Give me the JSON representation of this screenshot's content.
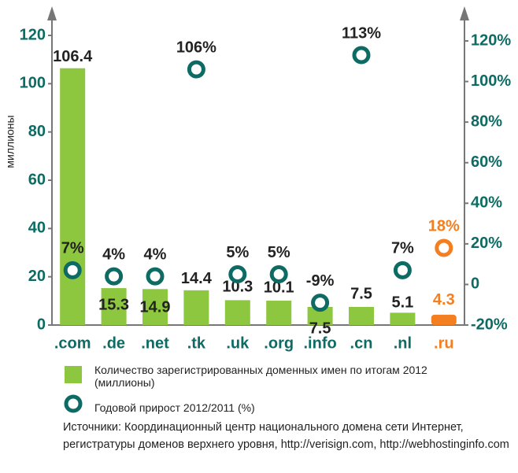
{
  "chart_data": {
    "type": "bar",
    "y_label": "миллионы",
    "categories": [
      ".com",
      ".de",
      ".net",
      ".tk",
      ".uk",
      ".org",
      ".info",
      ".cn",
      ".nl",
      ".ru"
    ],
    "category_colors": [
      "#0d6b64",
      "#0d6b64",
      "#0d6b64",
      "#0d6b64",
      "#0d6b64",
      "#0d6b64",
      "#0d6b64",
      "#0d6b64",
      "#0d6b64",
      "#f47f20"
    ],
    "ylim": [
      0,
      120
    ],
    "yticks": [
      0,
      20,
      40,
      60,
      80,
      100,
      120
    ],
    "y2lim": [
      -20,
      120
    ],
    "y2ticks": [
      {
        "value": -20,
        "label": "-20%"
      },
      {
        "value": 0,
        "label": "0"
      },
      {
        "value": 20,
        "label": "20%"
      },
      {
        "value": 40,
        "label": "40%"
      },
      {
        "value": 60,
        "label": "60%"
      },
      {
        "value": 80,
        "label": "80%"
      },
      {
        "value": 100,
        "label": "100%"
      },
      {
        "value": 120,
        "label": "120%"
      }
    ],
    "series": [
      {
        "name": "Количество зарегистрированных доменных имен по итогам 2012 (миллионы)",
        "type": "bar",
        "color": "#8dc63f",
        "colors": [
          "#8dc63f",
          "#8dc63f",
          "#8dc63f",
          "#8dc63f",
          "#8dc63f",
          "#8dc63f",
          "#8dc63f",
          "#8dc63f",
          "#8dc63f",
          "#f47f20"
        ],
        "values": [
          106.4,
          15.3,
          14.9,
          14.4,
          10.3,
          10.1,
          7.5,
          7.5,
          5.1,
          4.3
        ]
      },
      {
        "name": "Годовой прирост 2012/2011 (%)",
        "type": "scatter",
        "axis": "y2",
        "color": "#0d6b64",
        "colors": [
          "#0d6b64",
          "#0d6b64",
          "#0d6b64",
          "#0d6b64",
          "#0d6b64",
          "#0d6b64",
          "#0d6b64",
          "#0d6b64",
          "#0d6b64",
          "#f47f20"
        ],
        "values": [
          7,
          4,
          4,
          106,
          5,
          5,
          -9,
          113,
          7,
          18
        ],
        "value_labels": [
          "7%",
          "4%",
          "4%",
          "106%",
          "5%",
          "5%",
          "-9%",
          "113%",
          "7%",
          "18%"
        ]
      }
    ],
    "source": "Источники: Координационный центр национального домена сети Интернет, регистратуры доменов верхнего уровня, http://verisign.com, http://webhostinginfo.com"
  }
}
